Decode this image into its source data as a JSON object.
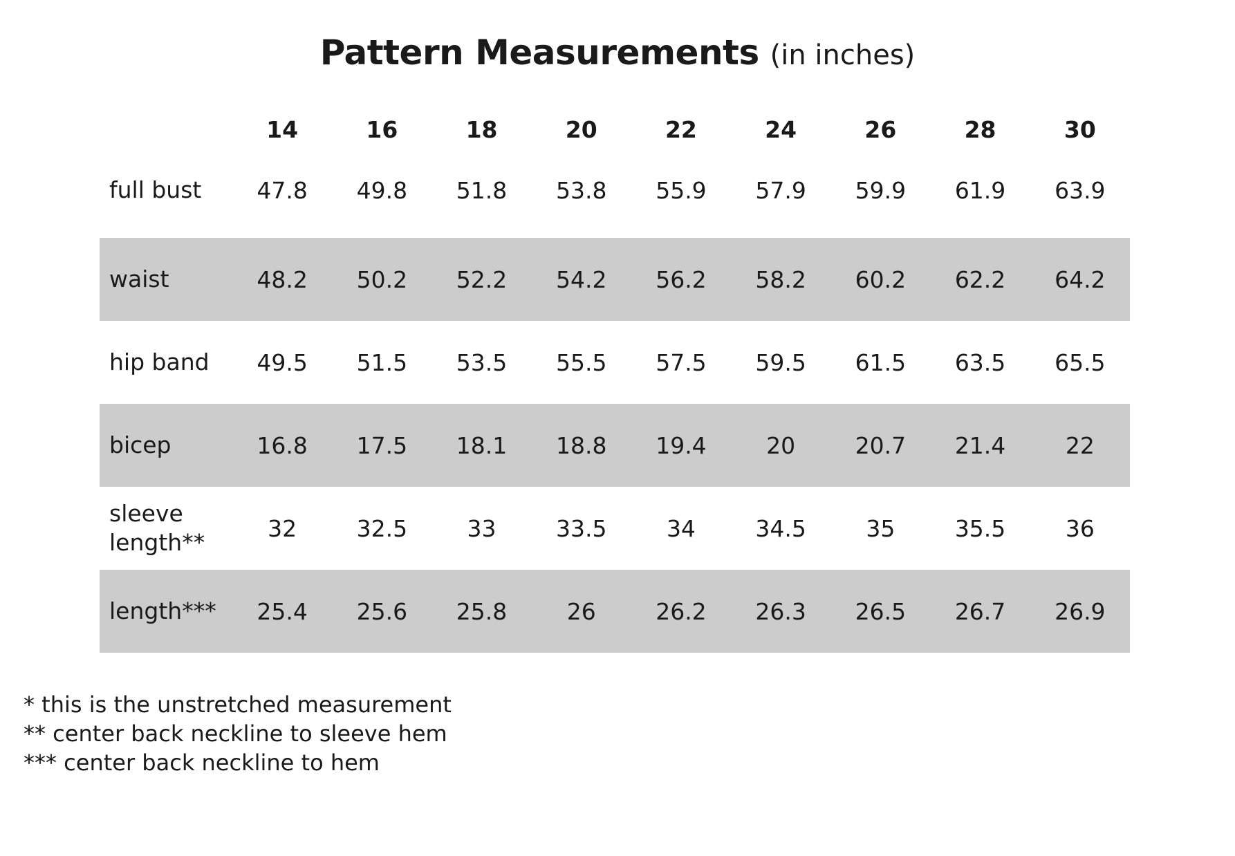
{
  "title": {
    "main": "Pattern Measurements",
    "sub": "(in inches)"
  },
  "sizes": [
    "14",
    "16",
    "18",
    "20",
    "22",
    "24",
    "26",
    "28",
    "30"
  ],
  "rows": [
    {
      "label": "full bust",
      "values": [
        "47.8",
        "49.8",
        "51.8",
        "53.8",
        "55.9",
        "57.9",
        "59.9",
        "61.9",
        "63.9"
      ]
    },
    {
      "label": "waist",
      "values": [
        "48.2",
        "50.2",
        "52.2",
        "54.2",
        "56.2",
        "58.2",
        "60.2",
        "62.2",
        "64.2"
      ]
    },
    {
      "label": "hip band",
      "values": [
        "49.5",
        "51.5",
        "53.5",
        "55.5",
        "57.5",
        "59.5",
        "61.5",
        "63.5",
        "65.5"
      ]
    },
    {
      "label": "bicep",
      "values": [
        "16.8",
        "17.5",
        "18.1",
        "18.8",
        "19.4",
        "20",
        "20.7",
        "21.4",
        "22"
      ]
    },
    {
      "label": "sleeve length**",
      "values": [
        "32",
        "32.5",
        "33",
        "33.5",
        "34",
        "34.5",
        "35",
        "35.5",
        "36"
      ]
    },
    {
      "label": "length***",
      "values": [
        "25.4",
        "25.6",
        "25.8",
        "26",
        "26.2",
        "26.3",
        "26.5",
        "26.7",
        "26.9"
      ]
    }
  ],
  "footnotes": [
    "* this is the unstretched measurement",
    "** center back neckline to sleeve hem",
    "*** center back neckline to hem"
  ],
  "colors": {
    "text": "#1a1a1a",
    "row_shade": "#cccccc",
    "background": "#ffffff"
  }
}
